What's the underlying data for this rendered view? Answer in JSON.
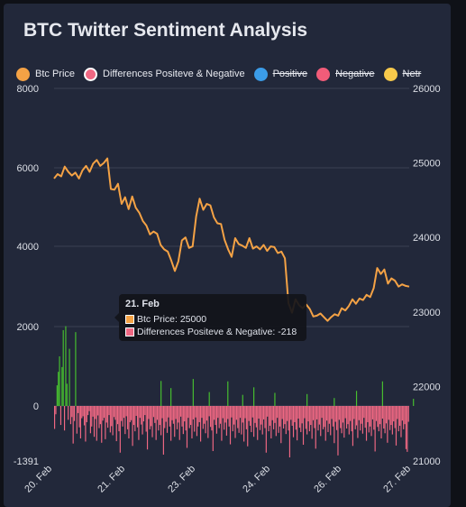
{
  "chart_data": {
    "type": "bar+line",
    "title": "BTC Twitter Sentiment Analysis",
    "legend": [
      {
        "name": "Btc Price",
        "color": "#f4a245",
        "hidden": false
      },
      {
        "name": "Differences Positeve & Negative",
        "color": "#f06883",
        "hidden": false
      },
      {
        "name": "Positive",
        "color": "#3b9ce8",
        "hidden": true
      },
      {
        "name": "Negative",
        "color": "#f25c79",
        "hidden": true
      },
      {
        "name": "Netr",
        "color": "#f7c94b",
        "hidden": true
      }
    ],
    "x_ticks": [
      "20. Feb",
      "21. Feb",
      "23. Feb",
      "24. Feb",
      "26. Feb",
      "27. Feb"
    ],
    "y_left_ticks": [
      "8000",
      "6000",
      "4000",
      "2000",
      "0",
      "-1391"
    ],
    "y_left_range": [
      -1391,
      8000
    ],
    "y_right_ticks": [
      "26000",
      "25000",
      "24000",
      "23000",
      "22000",
      "21000"
    ],
    "y_right_range": [
      21000,
      26000
    ],
    "price_series": {
      "name": "Btc Price",
      "color": "#f4a245",
      "values": [
        24790,
        24850,
        24820,
        24950,
        24880,
        24830,
        24870,
        24790,
        24900,
        24960,
        24880,
        24990,
        25040,
        24960,
        25000,
        25060,
        24650,
        24640,
        24720,
        24450,
        24540,
        24380,
        24550,
        24400,
        24330,
        24220,
        24160,
        24040,
        24080,
        24050,
        23900,
        23840,
        23810,
        23690,
        23550,
        23680,
        23960,
        24000,
        23860,
        23880,
        24280,
        24520,
        24370,
        24450,
        24430,
        24270,
        24190,
        24180,
        23970,
        23840,
        23740,
        23990,
        23910,
        23890,
        23860,
        23990,
        23850,
        23880,
        23840,
        23900,
        23820,
        23880,
        23870,
        23790,
        23810,
        23720,
        23120,
        22990,
        23170,
        23090,
        23050,
        23100,
        23040,
        22940,
        22950,
        22980,
        22930,
        22880,
        22930,
        22970,
        22950,
        23050,
        23020,
        23080,
        23170,
        23110,
        23180,
        23160,
        23230,
        23200,
        23320,
        23590,
        23510,
        23570,
        23380,
        23450,
        23420,
        23340,
        23370,
        23350,
        23340
      ]
    },
    "diff_series": {
      "name": "Differences Positeve & Negative",
      "color_positive": "#47c02f",
      "color_negative": "#f06883",
      "values": [
        -580,
        -210,
        520,
        860,
        1250,
        -480,
        980,
        1910,
        -620,
        2010,
        560,
        -350,
        1440,
        -460,
        -280,
        -950,
        -380,
        1860,
        -700,
        -180,
        -540,
        -820,
        -310,
        -260,
        -490,
        -900,
        -410,
        -230,
        -130,
        -690,
        -520,
        -270,
        -780,
        -330,
        -880,
        -240,
        -560,
        -460,
        -930,
        -370,
        -300,
        -840,
        -420,
        -550,
        -230,
        -670,
        -510,
        -740,
        -280,
        -350,
        -890,
        -460,
        -640,
        -1180,
        -380,
        -520,
        -300,
        -710,
        -260,
        -590,
        -820,
        -410,
        -360,
        -1010,
        -480,
        -640,
        -250,
        -540,
        -860,
        -300,
        -470,
        -720,
        -390,
        -230,
        -650,
        -1100,
        -330,
        -590,
        -510,
        -790,
        -280,
        -430,
        -860,
        -350,
        -620,
        -480,
        -740,
        -310,
        -1230,
        -560,
        -400,
        -680,
        -290,
        -520,
        -880,
        -360,
        -450,
        -780,
        -330,
        -590,
        -420,
        -860,
        -270,
        -520,
        -710,
        -390,
        -620,
        -1060,
        -300,
        -560,
        -480,
        -820,
        -340,
        -650,
        -290,
        -760,
        -520,
        -410,
        -900,
        -300,
        -580,
        -450,
        -690,
        -370,
        -810,
        -260,
        -530,
        -620,
        -1140,
        -350,
        -480,
        -700,
        -300,
        -560,
        -450,
        -880,
        -310,
        -600,
        -420,
        -750,
        -330,
        -520,
        -970,
        -290,
        -640,
        -470,
        -810,
        -350,
        -560,
        -680,
        -300,
        -720,
        -420,
        -900,
        -310,
        -590,
        -1020,
        -380,
        -500,
        -660,
        -290,
        -780,
        -430,
        -540,
        -860,
        -320,
        -610,
        -470,
        -720,
        -340,
        -560,
        -1180,
        -270,
        -640,
        -500,
        -820,
        -360,
        -590,
        -430,
        -760,
        -300,
        -680,
        -520,
        -940,
        -330,
        -570,
        -460,
        -710,
        -380,
        -620,
        -1300,
        -350,
        -500,
        -790,
        -410,
        -600,
        -870,
        -320,
        -550,
        -660,
        -440,
        -980,
        -310,
        -580,
        -720,
        -390,
        -640,
        -480,
        -830,
        -360,
        -560,
        -1080,
        -340,
        -620,
        -470,
        -760,
        -300,
        -590,
        -530,
        -880,
        -370,
        -660,
        -450,
        -740,
        -330,
        -520,
        -940,
        -400,
        -610,
        -1250,
        -350,
        -560,
        -690,
        -420,
        -800,
        -310,
        -570,
        -460,
        -720,
        -380,
        -640,
        -1010,
        -330,
        -590,
        -490,
        -810,
        -360,
        -620,
        -450,
        -700,
        -300,
        -550,
        -880,
        -410,
        -670,
        -520,
        -760,
        -340,
        -600,
        -1150,
        -380,
        -530,
        -640,
        -460,
        -820,
        -320,
        -570,
        -690,
        -440,
        -930,
        -350,
        -610,
        -480,
        -720,
        -390,
        -560,
        -1000,
        -330,
        -640,
        -500,
        -790,
        -370,
        -590,
        -460,
        -1090,
        -1160,
        -400
      ]
    },
    "diff_spikes": [
      {
        "index": 86,
        "value": 630
      },
      {
        "index": 94,
        "value": 450
      },
      {
        "index": 112,
        "value": 680
      },
      {
        "index": 125,
        "value": 350
      },
      {
        "index": 140,
        "value": 620
      },
      {
        "index": 152,
        "value": 280
      },
      {
        "index": 161,
        "value": 470
      },
      {
        "index": 178,
        "value": 330
      },
      {
        "index": 204,
        "value": 300
      },
      {
        "index": 226,
        "value": 200
      },
      {
        "index": 244,
        "value": 380
      },
      {
        "index": 265,
        "value": 620
      },
      {
        "index": 290,
        "value": 180
      }
    ],
    "tooltip": {
      "title": "21. Feb",
      "rows": [
        {
          "label": "Btc Price: 25000",
          "color": "#f4a245"
        },
        {
          "label": "Differences Positeve & Negative: -218",
          "color": "#f06883"
        }
      ]
    },
    "grid": true
  }
}
